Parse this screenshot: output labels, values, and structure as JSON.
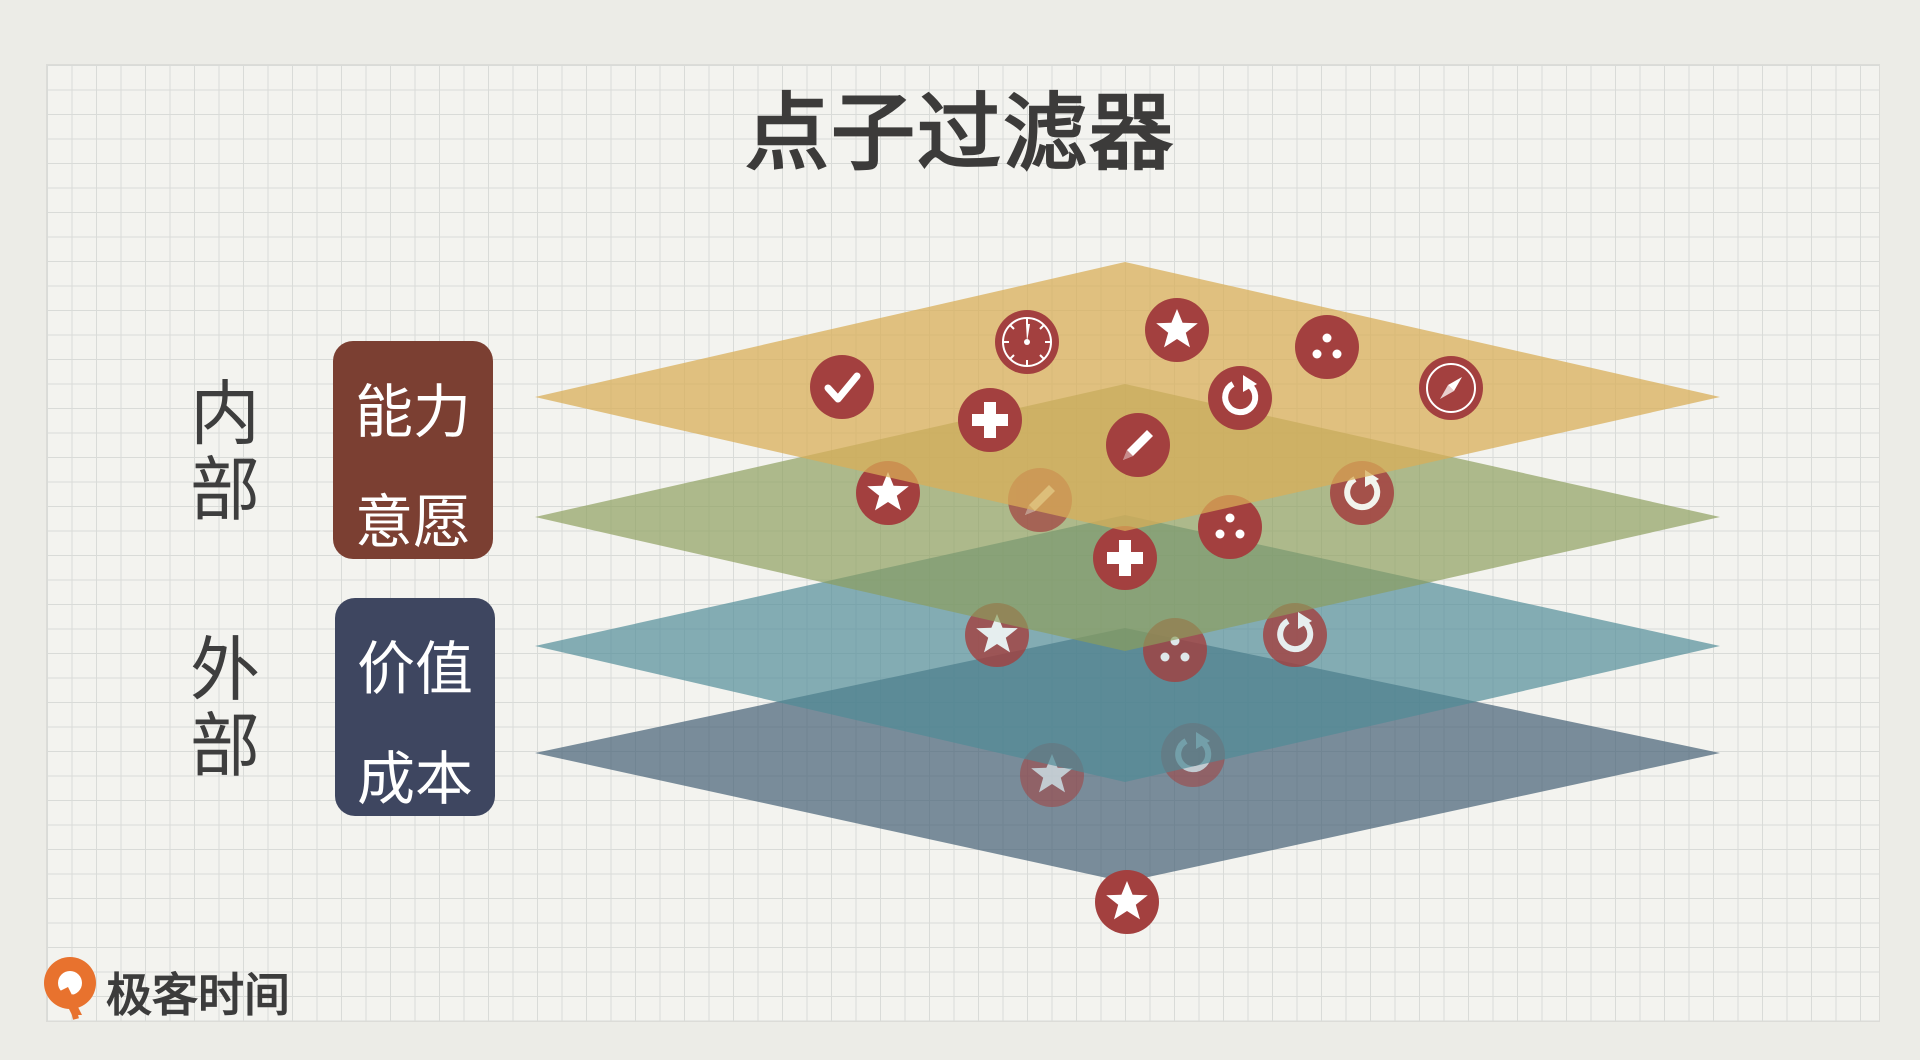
{
  "title": "点子过滤器",
  "labels": {
    "internal": [
      "内",
      "部"
    ],
    "external": [
      "外",
      "部"
    ]
  },
  "boxes": {
    "internal": {
      "line1": "能力",
      "line2": "意愿",
      "color": "#7b3f32"
    },
    "external": {
      "line1": "价值",
      "line2": "成本",
      "color": "#3e4660"
    }
  },
  "layers": [
    {
      "name": "capability",
      "color": "#d9ae58"
    },
    {
      "name": "willingness",
      "color": "#8c9e5c"
    },
    {
      "name": "value",
      "color": "#4e8a97"
    },
    {
      "name": "cost",
      "color": "#3f5b72"
    }
  ],
  "icons": {
    "layer1": [
      "check-icon",
      "stopwatch-icon",
      "star-icon",
      "dice-icon",
      "compass-icon",
      "plus-icon",
      "refresh-icon",
      "pencil-icon"
    ],
    "layer2": [
      "star-icon",
      "pencil-icon",
      "plus-icon",
      "dice-icon",
      "refresh-icon"
    ],
    "layer3": [
      "star-icon",
      "dice-icon",
      "refresh-icon"
    ],
    "layer4": [
      "star-icon",
      "refresh-icon"
    ],
    "output": [
      "star-icon"
    ],
    "icon_color": "#a3403f"
  },
  "logo": {
    "text": "极客时间",
    "color": "#e8722e"
  }
}
